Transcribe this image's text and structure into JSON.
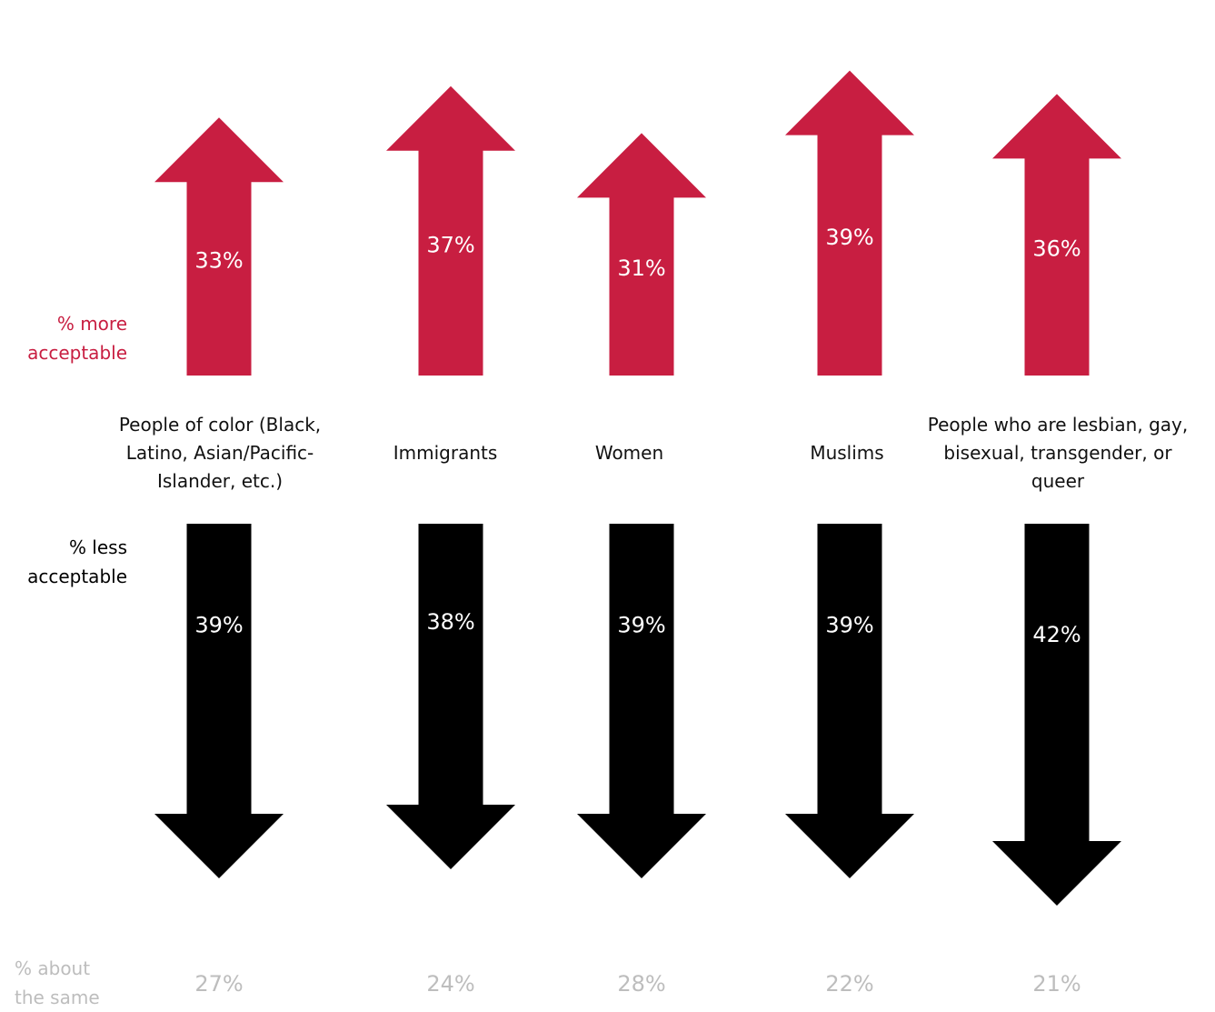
{
  "colors": {
    "up": "#c81e41",
    "down": "#000000",
    "same": "#bdbdbd",
    "arrow_text": "#ffffff"
  },
  "row_labels": {
    "more": "% more acceptable",
    "less": "% less acceptable",
    "same": "% about the same"
  },
  "chart_data": {
    "type": "bar",
    "categories": [
      "People of color (Black, Latino, Asian/Pacific-Islander, etc.)",
      "Immigrants",
      "Women",
      "Muslims",
      "People who are lesbian, gay, bisexual, transgender, or queer"
    ],
    "series": [
      {
        "name": "% more acceptable",
        "values": [
          33,
          37,
          31,
          39,
          36
        ],
        "labels": [
          "33%",
          "37%",
          "31%",
          "39%",
          "36%"
        ]
      },
      {
        "name": "% less acceptable",
        "values": [
          39,
          38,
          39,
          39,
          42
        ],
        "labels": [
          "39%",
          "38%",
          "39%",
          "39%",
          "42%"
        ]
      },
      {
        "name": "% about the same",
        "values": [
          27,
          24,
          28,
          22,
          21
        ],
        "labels": [
          "27%",
          "24%",
          "28%",
          "22%",
          "21%"
        ]
      }
    ]
  }
}
